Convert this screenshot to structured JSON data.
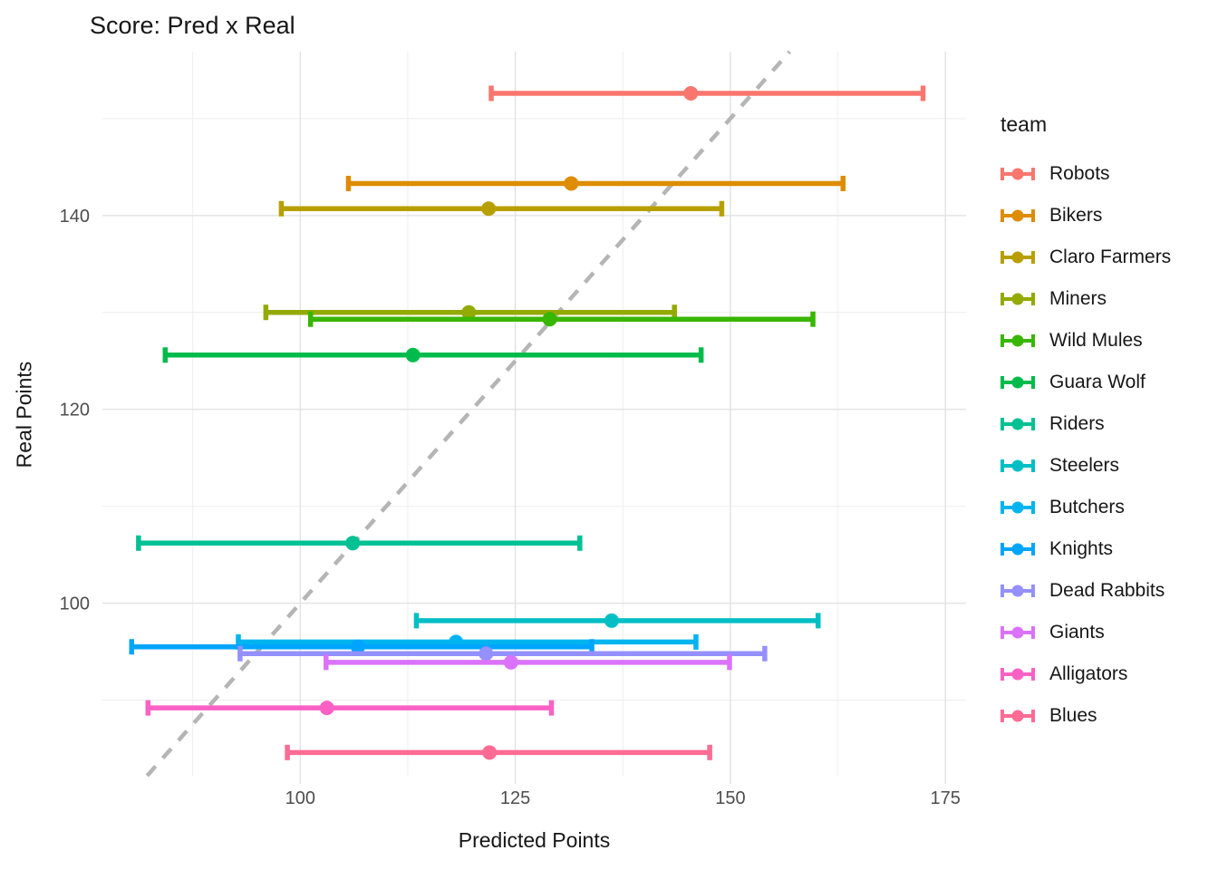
{
  "chart_data": {
    "type": "scatter",
    "subtype": "horizontal-errorbar",
    "title": "Score: Pred x Real",
    "xlabel": "Predicted Points",
    "ylabel": "Real Points",
    "legend_title": "team",
    "x_ticks": [
      100,
      125,
      150,
      175
    ],
    "x_minor_gridlines": [
      87.5,
      112.5,
      137.5,
      162.5
    ],
    "y_ticks": [
      100,
      120,
      140
    ],
    "y_minor_gridlines": [
      90,
      110,
      130,
      150
    ],
    "x_domain": [
      77.0,
      177.4
    ],
    "y_domain": [
      82.2,
      156.9
    ],
    "grid": "on",
    "legend_position": "right",
    "identity_line": {
      "type": "dashed",
      "color": "#b5b5b5",
      "equation": "y = x"
    },
    "style": {
      "major_grid_color": "#e2e2e2",
      "minor_grid_color": "#efefef",
      "tick_label_color": "#4d4d4d",
      "text_color": "#171717",
      "background": "#ffffff"
    },
    "teams": [
      {
        "name": "Robots",
        "color": "#F8766D",
        "pred": 145.4,
        "pred_low": 122.2,
        "pred_high": 172.4,
        "real": 152.6
      },
      {
        "name": "Bikers",
        "color": "#DE8C00",
        "pred": 131.5,
        "pred_low": 105.6,
        "pred_high": 163.1,
        "real": 143.3
      },
      {
        "name": "Claro Farmers",
        "color": "#B79F00",
        "pred": 121.9,
        "pred_low": 97.8,
        "pred_high": 149.0,
        "real": 140.7
      },
      {
        "name": "Miners",
        "color": "#93AA00",
        "pred": 119.6,
        "pred_low": 96.0,
        "pred_high": 143.5,
        "real": 130.0
      },
      {
        "name": "Wild Mules",
        "color": "#39B600",
        "pred": 129.0,
        "pred_low": 101.2,
        "pred_high": 159.6,
        "real": 129.3
      },
      {
        "name": "Guara Wolf",
        "color": "#00BB4B",
        "pred": 113.1,
        "pred_low": 84.3,
        "pred_high": 146.6,
        "real": 125.6
      },
      {
        "name": "Riders",
        "color": "#00C193",
        "pred": 106.1,
        "pred_low": 81.2,
        "pred_high": 132.5,
        "real": 106.2
      },
      {
        "name": "Steelers",
        "color": "#00BFC4",
        "pred": 136.2,
        "pred_low": 113.5,
        "pred_high": 160.2,
        "real": 98.2
      },
      {
        "name": "Butchers",
        "color": "#00B4F0",
        "pred": 118.1,
        "pred_low": 92.8,
        "pred_high": 146.0,
        "real": 96.0
      },
      {
        "name": "Knights",
        "color": "#00A5FF",
        "pred": 106.7,
        "pred_low": 80.4,
        "pred_high": 133.9,
        "real": 95.5
      },
      {
        "name": "Dead Rabbits",
        "color": "#9590FF",
        "pred": 121.6,
        "pred_low": 93.0,
        "pred_high": 154.0,
        "real": 94.8
      },
      {
        "name": "Giants",
        "color": "#DB72FB",
        "pred": 124.5,
        "pred_low": 103.0,
        "pred_high": 149.9,
        "real": 93.9
      },
      {
        "name": "Alligators",
        "color": "#FB61C4",
        "pred": 103.1,
        "pred_low": 82.3,
        "pred_high": 129.2,
        "real": 89.2
      },
      {
        "name": "Blues",
        "color": "#FF6B94",
        "pred": 122.0,
        "pred_low": 98.5,
        "pred_high": 147.6,
        "real": 84.6
      }
    ]
  }
}
